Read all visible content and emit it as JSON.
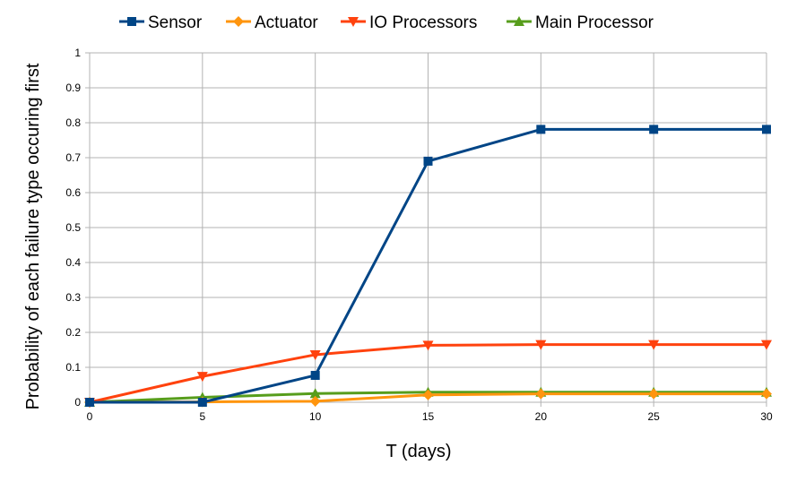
{
  "chart_data": {
    "type": "line",
    "title": "",
    "xlabel": "T (days)",
    "ylabel": "Probability of each failure type occuring first",
    "x": [
      0,
      5,
      10,
      15,
      20,
      25,
      30
    ],
    "xlim": [
      0,
      30
    ],
    "ylim": [
      0,
      1
    ],
    "xticks": [
      0,
      5,
      10,
      15,
      20,
      25,
      30
    ],
    "yticks": [
      0,
      0.1,
      0.2,
      0.3,
      0.4,
      0.5,
      0.6,
      0.7,
      0.8,
      0.9,
      1
    ],
    "grid": true,
    "legend_position": "top",
    "series": [
      {
        "name": "Sensor",
        "color": "#004586",
        "marker": "square",
        "values": [
          0,
          0,
          0.077,
          0.69,
          0.781,
          0.781,
          0.781
        ]
      },
      {
        "name": "Actuator",
        "color": "#ff950e",
        "marker": "diamond",
        "values": [
          0,
          0.001,
          0.003,
          0.021,
          0.024,
          0.024,
          0.024
        ]
      },
      {
        "name": "IO Processors",
        "color": "#ff420e",
        "marker": "triangle-down",
        "values": [
          0,
          0.074,
          0.136,
          0.163,
          0.165,
          0.165,
          0.165
        ]
      },
      {
        "name": "Main Processor",
        "color": "#579d1c",
        "marker": "triangle-up",
        "values": [
          0,
          0.014,
          0.025,
          0.029,
          0.029,
          0.029,
          0.029
        ]
      }
    ]
  }
}
